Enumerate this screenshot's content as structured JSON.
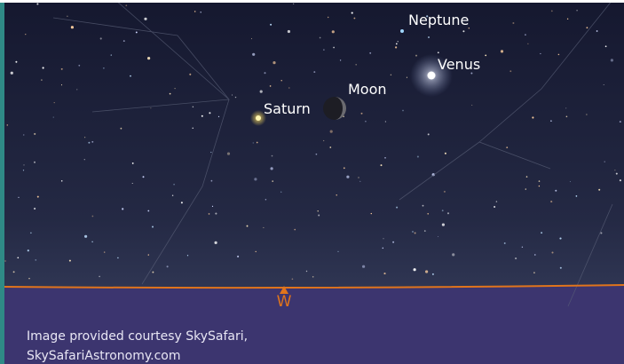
{
  "sky_objects": [
    {
      "label": "Neptune"
    },
    {
      "label": "Venus"
    },
    {
      "label": "Moon"
    },
    {
      "label": "Saturn"
    }
  ],
  "horizon": {
    "direction": "W"
  },
  "credit": {
    "line1": "Image provided courtesy SkySafari,",
    "line2": "SkySafariAstronomy.com"
  }
}
